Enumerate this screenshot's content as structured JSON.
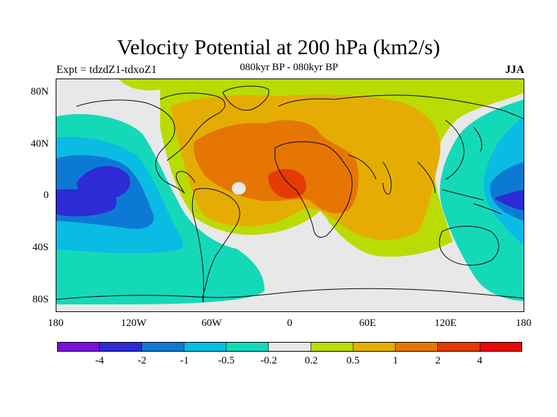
{
  "plot": {
    "title": "Velocity Potential at 200 hPa (km2/s)",
    "left_label": "Expt = tdzdZ1-tdxoZ1",
    "center_label": "080kyr BP - 080kyr BP",
    "right_label": "JJA"
  },
  "axes": {
    "lat_ticks": [
      "80N",
      "40N",
      "0",
      "40S",
      "80S"
    ],
    "lon_ticks": [
      "180",
      "120W",
      "60W",
      "0",
      "60E",
      "120E",
      "180"
    ]
  },
  "colorbar": {
    "colors": [
      "#7a0fd9",
      "#2e2ad6",
      "#0c7ad4",
      "#0abbe3",
      "#14d9b9",
      "#e8e8e8",
      "#bbdb04",
      "#e5ad04",
      "#e67604",
      "#e43b04",
      "#e80808"
    ],
    "labels": [
      "-4",
      "-2",
      "-1",
      "-0.5",
      "-0.2",
      "0.2",
      "0.5",
      "1",
      "2",
      "4"
    ]
  },
  "map": {
    "icon": "world-coastline-map",
    "background_color": "#e8e8e8"
  }
}
